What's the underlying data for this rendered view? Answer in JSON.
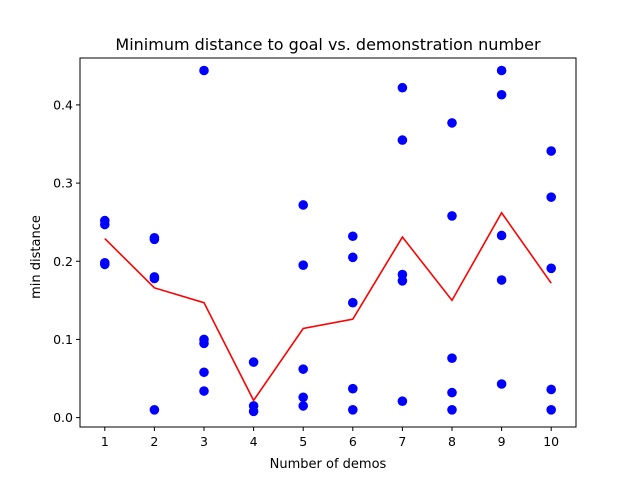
{
  "chart_data": {
    "type": "scatter",
    "title": "Minimum distance to goal vs. demonstration number",
    "xlabel": "Number of demos",
    "ylabel": "min distance",
    "xlim": [
      0.5,
      10.5
    ],
    "ylim": [
      -0.012,
      0.46
    ],
    "x_ticks": [
      1,
      2,
      3,
      4,
      5,
      6,
      7,
      8,
      9,
      10
    ],
    "y_ticks": [
      0.0,
      0.1,
      0.2,
      0.3,
      0.4
    ],
    "y_tick_labels": [
      "0.0",
      "0.1",
      "0.2",
      "0.3",
      "0.4"
    ],
    "grid": false,
    "legend": "none",
    "colors": {
      "points": "#0000ff",
      "mean_line": "#ff0000"
    },
    "points": [
      {
        "x": 1,
        "y": 0.252
      },
      {
        "x": 1,
        "y": 0.247
      },
      {
        "x": 1,
        "y": 0.198
      },
      {
        "x": 1,
        "y": 0.196
      },
      {
        "x": 2,
        "y": 0.23
      },
      {
        "x": 2,
        "y": 0.228
      },
      {
        "x": 2,
        "y": 0.18
      },
      {
        "x": 2,
        "y": 0.178
      },
      {
        "x": 2,
        "y": 0.01
      },
      {
        "x": 3,
        "y": 0.444
      },
      {
        "x": 3,
        "y": 0.1
      },
      {
        "x": 3,
        "y": 0.095
      },
      {
        "x": 3,
        "y": 0.058
      },
      {
        "x": 3,
        "y": 0.034
      },
      {
        "x": 4,
        "y": 0.071
      },
      {
        "x": 4,
        "y": 0.015
      },
      {
        "x": 4,
        "y": 0.008
      },
      {
        "x": 5,
        "y": 0.272
      },
      {
        "x": 5,
        "y": 0.195
      },
      {
        "x": 5,
        "y": 0.062
      },
      {
        "x": 5,
        "y": 0.026
      },
      {
        "x": 5,
        "y": 0.015
      },
      {
        "x": 6,
        "y": 0.232
      },
      {
        "x": 6,
        "y": 0.205
      },
      {
        "x": 6,
        "y": 0.147
      },
      {
        "x": 6,
        "y": 0.037
      },
      {
        "x": 6,
        "y": 0.01
      },
      {
        "x": 7,
        "y": 0.422
      },
      {
        "x": 7,
        "y": 0.355
      },
      {
        "x": 7,
        "y": 0.183
      },
      {
        "x": 7,
        "y": 0.175
      },
      {
        "x": 7,
        "y": 0.021
      },
      {
        "x": 8,
        "y": 0.377
      },
      {
        "x": 8,
        "y": 0.258
      },
      {
        "x": 8,
        "y": 0.076
      },
      {
        "x": 8,
        "y": 0.032
      },
      {
        "x": 8,
        "y": 0.01
      },
      {
        "x": 9,
        "y": 0.444
      },
      {
        "x": 9,
        "y": 0.413
      },
      {
        "x": 9,
        "y": 0.233
      },
      {
        "x": 9,
        "y": 0.176
      },
      {
        "x": 9,
        "y": 0.043
      },
      {
        "x": 10,
        "y": 0.341
      },
      {
        "x": 10,
        "y": 0.282
      },
      {
        "x": 10,
        "y": 0.191
      },
      {
        "x": 10,
        "y": 0.036
      },
      {
        "x": 10,
        "y": 0.01
      }
    ],
    "line": {
      "x": [
        1,
        2,
        3,
        4,
        5,
        6,
        7,
        8,
        9,
        10
      ],
      "y": [
        0.229,
        0.166,
        0.147,
        0.022,
        0.114,
        0.126,
        0.231,
        0.15,
        0.262,
        0.172
      ]
    }
  }
}
